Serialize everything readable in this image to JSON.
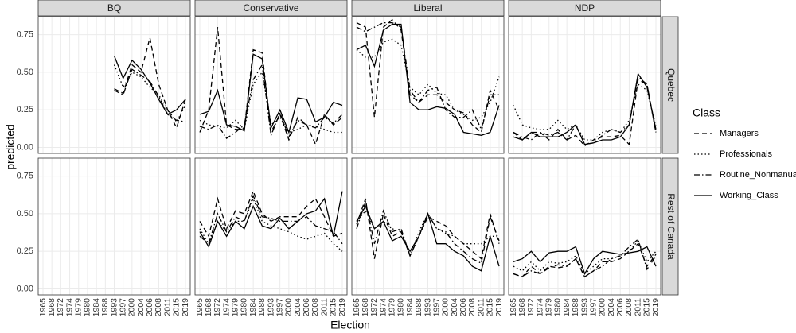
{
  "chart_data": {
    "type": "line",
    "xlabel": "Election",
    "ylabel": "predicted",
    "legend_title": "Class",
    "categories": [
      "1965",
      "1968",
      "1972",
      "1974",
      "1979",
      "1980",
      "1984",
      "1988",
      "1993",
      "1997",
      "2000",
      "2004",
      "2006",
      "2008",
      "2011",
      "2015",
      "2019"
    ],
    "ylim": [
      -0.04,
      0.87
    ],
    "yticks": [
      {
        "value": 0,
        "label": "0.00"
      },
      {
        "value": 0.25,
        "label": "0.25"
      },
      {
        "value": 0.5,
        "label": "0.50"
      },
      {
        "value": 0.75,
        "label": "0.75"
      }
    ],
    "grid": true,
    "facet_columns": [
      "BQ",
      "Conservative",
      "Liberal",
      "NDP"
    ],
    "facet_rows": [
      "Quebec",
      "Rest of Canada"
    ],
    "series": [
      {
        "name": "Managers",
        "color": "#000000",
        "linetype": "dashed"
      },
      {
        "name": "Professionals",
        "color": "#000000",
        "linetype": "dotted"
      },
      {
        "name": "Routine_Nonmanual",
        "color": "#000000",
        "linetype": "dotdash"
      },
      {
        "name": "Working_Class",
        "color": "#000000",
        "linetype": "solid"
      }
    ],
    "panels": [
      [
        [
          [
            null,
            null,
            null,
            null,
            null,
            null,
            null,
            null,
            0.39,
            0.36,
            0.55,
            0.5,
            0.73,
            0.42,
            0.25,
            0.13,
            0.32
          ],
          [
            null,
            null,
            null,
            null,
            null,
            null,
            null,
            null,
            0.55,
            0.4,
            0.5,
            0.47,
            0.4,
            0.35,
            0.25,
            0.17,
            0.28
          ],
          [
            null,
            null,
            null,
            null,
            null,
            null,
            null,
            null,
            0.38,
            0.35,
            0.52,
            0.48,
            0.44,
            0.34,
            0.22,
            0.18,
            0.17
          ],
          [
            null,
            null,
            null,
            null,
            null,
            null,
            null,
            null,
            0.61,
            0.46,
            0.58,
            0.52,
            0.43,
            0.32,
            0.22,
            0.25,
            0.32
          ]
        ],
        [
          [
            0.1,
            0.25,
            0.8,
            0.15,
            0.12,
            0.12,
            0.65,
            0.63,
            0.1,
            0.22,
            0.05,
            0.2,
            0.15,
            0.02,
            0.22,
            0.15,
            0.2
          ],
          [
            0.18,
            0.15,
            0.14,
            0.13,
            0.18,
            0.12,
            0.42,
            0.5,
            0.15,
            0.2,
            0.1,
            0.12,
            0.15,
            0.14,
            0.12,
            0.1,
            0.1
          ],
          [
            0.14,
            0.12,
            0.15,
            0.06,
            0.1,
            0.15,
            0.45,
            0.55,
            0.08,
            0.23,
            0.07,
            0.18,
            0.15,
            0.13,
            0.2,
            0.16,
            0.22
          ],
          [
            0.22,
            0.24,
            0.38,
            0.15,
            0.14,
            0.11,
            0.62,
            0.59,
            0.13,
            0.25,
            0.1,
            0.33,
            0.32,
            0.17,
            0.2,
            0.3,
            0.28
          ]
        ],
        [
          [
            0.83,
            0.8,
            0.2,
            0.8,
            0.85,
            0.78,
            0.35,
            0.3,
            0.35,
            0.35,
            0.3,
            0.25,
            0.23,
            0.15,
            0.1,
            0.38,
            0.25
          ],
          [
            0.65,
            0.6,
            0.6,
            0.7,
            0.72,
            0.68,
            0.4,
            0.35,
            0.42,
            0.36,
            0.35,
            0.25,
            0.22,
            0.18,
            0.2,
            0.3,
            0.47
          ],
          [
            0.8,
            0.77,
            0.8,
            0.83,
            0.83,
            0.8,
            0.38,
            0.3,
            0.38,
            0.4,
            0.25,
            0.2,
            0.2,
            0.25,
            0.12,
            0.35,
            0.35
          ],
          [
            0.65,
            0.68,
            0.54,
            0.78,
            0.82,
            0.82,
            0.3,
            0.25,
            0.25,
            0.27,
            0.26,
            0.22,
            0.1,
            0.09,
            0.08,
            0.1,
            0.28
          ]
        ],
        [
          [
            0.1,
            0.05,
            0.1,
            0.1,
            0.05,
            0.12,
            0.05,
            0.08,
            0.01,
            0.05,
            0.07,
            0.07,
            0.08,
            0.02,
            0.45,
            0.42,
            0.1
          ],
          [
            0.28,
            0.15,
            0.13,
            0.12,
            0.12,
            0.18,
            0.12,
            0.15,
            0.05,
            0.05,
            0.1,
            0.12,
            0.1,
            0.18,
            0.42,
            0.38,
            0.14
          ],
          [
            0.1,
            0.07,
            0.05,
            0.1,
            0.08,
            0.1,
            0.05,
            0.15,
            0.02,
            0.03,
            0.08,
            0.12,
            0.1,
            0.15,
            0.47,
            0.42,
            0.1
          ],
          [
            0.07,
            0.05,
            0.1,
            0.07,
            0.07,
            0.07,
            0.1,
            0.15,
            0.02,
            0.03,
            0.05,
            0.05,
            0.07,
            0.15,
            0.49,
            0.4,
            0.12
          ]
        ]
      ],
      [
        [
          [
            null,
            null,
            null,
            null,
            null,
            null,
            null,
            null,
            null,
            null,
            null,
            null,
            null,
            null,
            null,
            null,
            null
          ],
          [
            null,
            null,
            null,
            null,
            null,
            null,
            null,
            null,
            null,
            null,
            null,
            null,
            null,
            null,
            null,
            null,
            null
          ],
          [
            null,
            null,
            null,
            null,
            null,
            null,
            null,
            null,
            null,
            null,
            null,
            null,
            null,
            null,
            null,
            null,
            null
          ],
          [
            null,
            null,
            null,
            null,
            null,
            null,
            null,
            null,
            null,
            null,
            null,
            null,
            null,
            null,
            null,
            null,
            null
          ]
        ],
        [
          [
            0.45,
            0.35,
            0.6,
            0.4,
            0.52,
            0.5,
            0.65,
            0.5,
            0.45,
            0.48,
            0.48,
            0.48,
            0.55,
            0.6,
            0.48,
            0.35,
            0.37
          ],
          [
            0.4,
            0.3,
            0.45,
            0.38,
            0.45,
            0.45,
            0.6,
            0.45,
            0.42,
            0.4,
            0.38,
            0.35,
            0.33,
            0.35,
            0.37,
            0.3,
            0.25
          ],
          [
            0.35,
            0.3,
            0.5,
            0.38,
            0.48,
            0.45,
            0.62,
            0.48,
            0.47,
            0.45,
            0.45,
            0.45,
            0.48,
            0.42,
            0.4,
            0.38,
            0.3
          ],
          [
            0.38,
            0.28,
            0.45,
            0.35,
            0.45,
            0.4,
            0.55,
            0.42,
            0.4,
            0.47,
            0.4,
            0.45,
            0.5,
            0.52,
            0.6,
            0.35,
            0.65
          ]
        ],
        [
          [
            0.43,
            0.6,
            0.2,
            0.5,
            0.35,
            0.38,
            0.22,
            0.35,
            0.48,
            0.45,
            0.42,
            0.35,
            0.3,
            0.25,
            0.2,
            0.5,
            0.3
          ],
          [
            0.45,
            0.52,
            0.4,
            0.45,
            0.4,
            0.38,
            0.22,
            0.38,
            0.5,
            0.4,
            0.37,
            0.35,
            0.3,
            0.3,
            0.3,
            0.35,
            0.35
          ],
          [
            0.4,
            0.58,
            0.3,
            0.52,
            0.38,
            0.4,
            0.22,
            0.35,
            0.5,
            0.4,
            0.38,
            0.3,
            0.25,
            0.2,
            0.17,
            0.48,
            0.32
          ],
          [
            0.45,
            0.55,
            0.4,
            0.45,
            0.32,
            0.35,
            0.25,
            0.35,
            0.5,
            0.3,
            0.3,
            0.25,
            0.22,
            0.15,
            0.12,
            0.35,
            0.15
          ]
        ],
        [
          [
            0.1,
            0.08,
            0.15,
            0.1,
            0.15,
            0.14,
            0.15,
            0.2,
            0.08,
            0.12,
            0.18,
            0.18,
            0.2,
            0.25,
            0.3,
            0.15,
            0.23
          ],
          [
            0.15,
            0.12,
            0.18,
            0.12,
            0.18,
            0.17,
            0.18,
            0.22,
            0.1,
            0.15,
            0.2,
            0.2,
            0.22,
            0.25,
            0.32,
            0.18,
            0.25
          ],
          [
            0.1,
            0.08,
            0.12,
            0.1,
            0.14,
            0.16,
            0.15,
            0.2,
            0.08,
            0.12,
            0.15,
            0.2,
            0.22,
            0.28,
            0.33,
            0.13,
            0.22
          ],
          [
            0.18,
            0.2,
            0.25,
            0.18,
            0.24,
            0.25,
            0.25,
            0.28,
            0.1,
            0.2,
            0.25,
            0.24,
            0.23,
            0.24,
            0.25,
            0.28,
            0.15
          ]
        ]
      ]
    ]
  }
}
